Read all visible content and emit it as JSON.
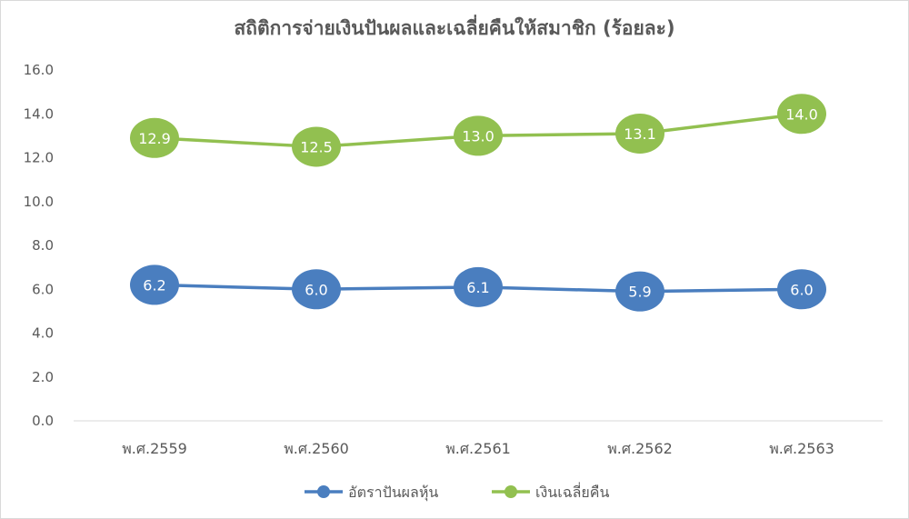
{
  "chart_data": {
    "type": "line",
    "title": "สถิติการจ่ายเงินปันผลและเฉลี่ยคืนให้สมาชิก (ร้อยละ)",
    "categories": [
      "พ.ศ.2559",
      "พ.ศ.2560",
      "พ.ศ.2561",
      "พ.ศ.2562",
      "พ.ศ.2563"
    ],
    "ylim": [
      0,
      16
    ],
    "yticks": [
      "0.0",
      "2.0",
      "4.0",
      "6.0",
      "8.0",
      "10.0",
      "12.0",
      "14.0",
      "16.0"
    ],
    "grid": false,
    "legend_position": "bottom",
    "series": [
      {
        "name": "อัตราปันผลหุ้น",
        "color": "#4a7ebf",
        "values": [
          6.2,
          6.0,
          6.1,
          5.9,
          6.0
        ],
        "labels": [
          "6.2",
          "6.0",
          "6.1",
          "5.9",
          "6.0"
        ]
      },
      {
        "name": "เงินเฉลี่ยคืน",
        "color": "#92c050",
        "values": [
          12.9,
          12.5,
          13.0,
          13.1,
          14.0
        ],
        "labels": [
          "12.9",
          "12.5",
          "13.0",
          "13.1",
          "14.0"
        ]
      }
    ]
  }
}
